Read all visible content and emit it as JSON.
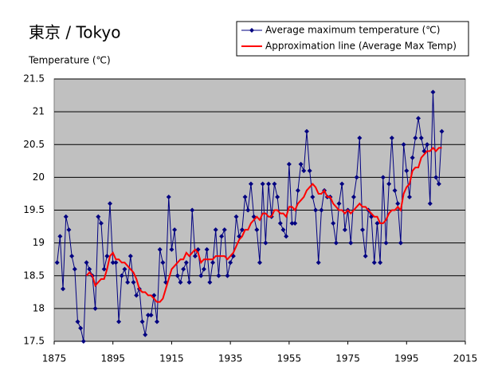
{
  "chart_data": {
    "type": "line",
    "title": "東京 / Tokyo",
    "y_label": "Temperature (℃)",
    "x": [
      1876,
      1877,
      1878,
      1879,
      1880,
      1881,
      1882,
      1883,
      1884,
      1885,
      1886,
      1887,
      1888,
      1889,
      1890,
      1891,
      1892,
      1893,
      1894,
      1895,
      1896,
      1897,
      1898,
      1899,
      1900,
      1901,
      1902,
      1903,
      1904,
      1905,
      1906,
      1907,
      1908,
      1909,
      1910,
      1911,
      1912,
      1913,
      1914,
      1915,
      1916,
      1917,
      1918,
      1919,
      1920,
      1921,
      1922,
      1923,
      1924,
      1925,
      1926,
      1927,
      1928,
      1929,
      1930,
      1931,
      1932,
      1933,
      1934,
      1935,
      1936,
      1937,
      1938,
      1939,
      1940,
      1941,
      1942,
      1943,
      1944,
      1945,
      1946,
      1947,
      1948,
      1949,
      1950,
      1951,
      1952,
      1953,
      1954,
      1955,
      1956,
      1957,
      1958,
      1959,
      1960,
      1961,
      1962,
      1963,
      1964,
      1965,
      1966,
      1967,
      1968,
      1969,
      1970,
      1971,
      1972,
      1973,
      1974,
      1975,
      1976,
      1977,
      1978,
      1979,
      1980,
      1981,
      1982,
      1983,
      1984,
      1985,
      1986,
      1987,
      1988,
      1989,
      1990,
      1991,
      1992,
      1993,
      1994,
      1995,
      1996,
      1997,
      1998,
      1999,
      2000,
      2001,
      2002,
      2003,
      2004,
      2005,
      2006,
      2007
    ],
    "series": [
      {
        "name": "Average maximum temperature (℃)",
        "color": "#000080",
        "marker": "diamond",
        "values": [
          18.7,
          19.1,
          18.3,
          19.4,
          19.2,
          18.8,
          18.6,
          17.8,
          17.7,
          17.5,
          18.7,
          18.6,
          18.5,
          18.0,
          19.4,
          19.3,
          18.6,
          18.8,
          19.6,
          18.7,
          18.7,
          17.8,
          18.5,
          18.6,
          18.4,
          18.8,
          18.4,
          18.2,
          18.3,
          17.8,
          17.6,
          17.9,
          17.9,
          18.2,
          17.8,
          18.9,
          18.7,
          18.4,
          19.7,
          18.9,
          19.2,
          18.5,
          18.4,
          18.6,
          18.7,
          18.4,
          19.5,
          18.8,
          18.9,
          18.5,
          18.6,
          18.9,
          18.4,
          18.7,
          19.2,
          18.5,
          19.1,
          19.2,
          18.5,
          18.7,
          18.8,
          19.4,
          19.1,
          19.2,
          19.7,
          19.5,
          19.9,
          19.4,
          19.2,
          18.7,
          19.9,
          19.0,
          19.9,
          19.4,
          19.9,
          19.7,
          19.3,
          19.2,
          19.1,
          20.2,
          19.3,
          19.3,
          19.8,
          20.2,
          20.1,
          20.7,
          20.1,
          19.7,
          19.5,
          18.7,
          19.5,
          19.8,
          19.7,
          19.7,
          19.3,
          19.0,
          19.6,
          19.9,
          19.2,
          19.5,
          19.0,
          19.7,
          20.0,
          20.6,
          19.2,
          18.8,
          19.5,
          19.4,
          18.7,
          19.3,
          18.7,
          20.0,
          19.0,
          19.9,
          20.6,
          19.8,
          19.6,
          19.0,
          20.5,
          20.1,
          19.7,
          20.3,
          20.6,
          20.9,
          20.6,
          20.4,
          20.5,
          19.6,
          21.3,
          20.0,
          19.9,
          20.7
        ]
      },
      {
        "name": "Approximation line (Average Max Temp)",
        "color": "#ff0000",
        "values": [
          null,
          null,
          null,
          null,
          null,
          null,
          null,
          null,
          null,
          null,
          18.5,
          18.55,
          18.5,
          18.35,
          18.4,
          18.45,
          18.45,
          18.6,
          18.8,
          18.85,
          18.75,
          18.75,
          18.7,
          18.7,
          18.65,
          18.6,
          18.55,
          18.45,
          18.3,
          18.25,
          18.25,
          18.2,
          18.2,
          18.15,
          18.1,
          18.1,
          18.15,
          18.3,
          18.45,
          18.6,
          18.65,
          18.7,
          18.75,
          18.75,
          18.85,
          18.8,
          18.85,
          18.9,
          18.85,
          18.7,
          18.75,
          18.75,
          18.75,
          18.75,
          18.8,
          18.8,
          18.8,
          18.8,
          18.75,
          18.8,
          18.85,
          18.95,
          19.05,
          19.1,
          19.2,
          19.2,
          19.3,
          19.35,
          19.4,
          19.35,
          19.45,
          19.45,
          19.4,
          19.4,
          19.5,
          19.5,
          19.45,
          19.45,
          19.4,
          19.55,
          19.55,
          19.5,
          19.6,
          19.65,
          19.7,
          19.8,
          19.85,
          19.9,
          19.85,
          19.75,
          19.75,
          19.8,
          19.7,
          19.7,
          19.6,
          19.55,
          19.5,
          19.5,
          19.45,
          19.5,
          19.45,
          19.5,
          19.55,
          19.6,
          19.55,
          19.55,
          19.5,
          19.45,
          19.4,
          19.4,
          19.3,
          19.3,
          19.35,
          19.45,
          19.5,
          19.5,
          19.55,
          19.5,
          19.75,
          19.85,
          19.9,
          20.1,
          20.15,
          20.15,
          20.3,
          20.35,
          20.4,
          20.4,
          20.45,
          20.4,
          20.45,
          20.45
        ]
      }
    ],
    "xlim": [
      1875,
      2015
    ],
    "xticks": [
      1875,
      1895,
      1915,
      1935,
      1955,
      1975,
      1995,
      2015
    ],
    "ylim": [
      17.5,
      21.5
    ],
    "yticks": [
      17.5,
      18,
      18.5,
      19,
      19.5,
      20,
      20.5,
      21,
      21.5
    ],
    "grid": true,
    "legend": "upper right",
    "background": "#c0c0c0"
  }
}
